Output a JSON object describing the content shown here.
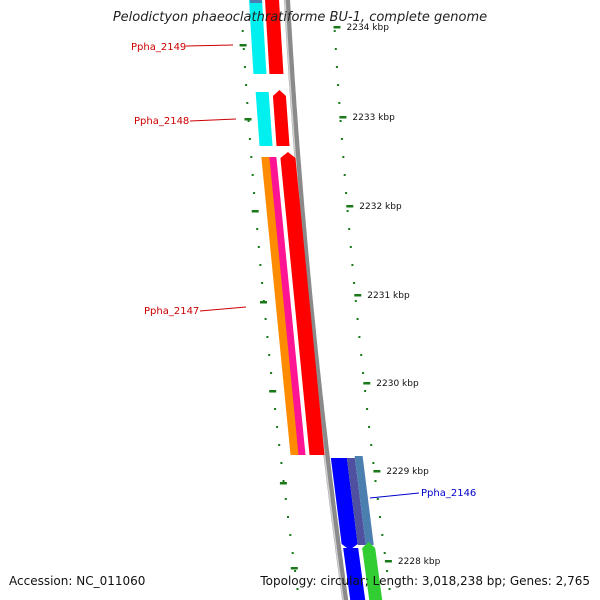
{
  "title": "Pelodictyon phaeoclathratiforme BU-1, complete genome",
  "footer": {
    "accession": "Accession: NC_011060",
    "topology": "Topology: circular; Length: 3,018,238 bp; Genes: 2,765"
  },
  "scale_labels": [
    "2234 kbp",
    "2233 kbp",
    "2232 kbp",
    "2231 kbp",
    "2230 kbp",
    "2229 kbp",
    "2228 kbp"
  ],
  "genes": [
    {
      "name": "Ppha_2149",
      "color": "#cc0000"
    },
    {
      "name": "Ppha_2148",
      "color": "#cc0000"
    },
    {
      "name": "Ppha_2147",
      "color": "#cc0000"
    },
    {
      "name": "Ppha_2146",
      "color": "#0000cc"
    }
  ],
  "colors": {
    "backbone": "#8a8a8a",
    "tick": "#1a7a1a",
    "red": "#ff0000",
    "cyan": "#00f0f0",
    "orange": "#ff8c00",
    "magenta": "#ff1493",
    "blue": "#0000ff",
    "slate": "#5050a0",
    "steel": "#4a7fb0",
    "green": "#32cd32"
  }
}
